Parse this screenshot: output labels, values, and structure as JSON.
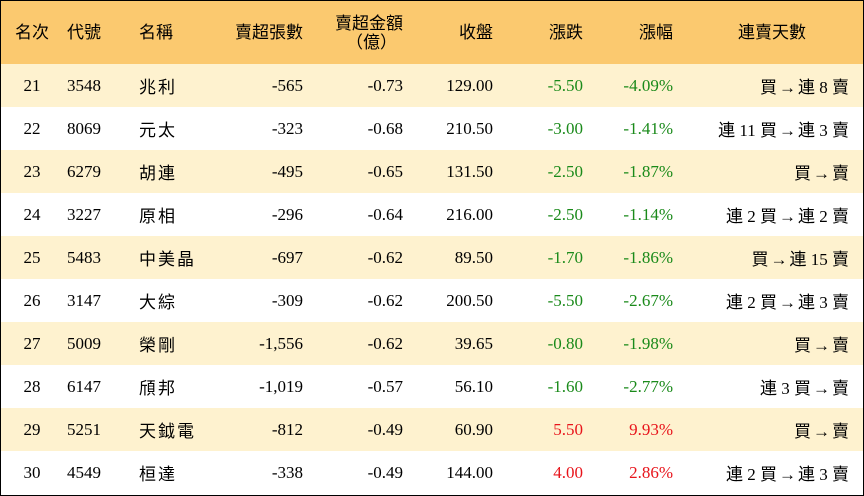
{
  "colors": {
    "header_bg": "#FBC96F",
    "stripe_bg": "#FEF2CF",
    "down": "#1A8A1A",
    "up": "#E8141B"
  },
  "header": {
    "rank": "名次",
    "code": "代號",
    "name": "名稱",
    "net_sell_lots": "賣超張數",
    "net_sell_amount_line1": "賣超金額",
    "net_sell_amount_line2": "（億）",
    "close": "收盤",
    "change": "漲跌",
    "change_pct": "漲幅",
    "streak": "連賣天數"
  },
  "rows": [
    {
      "rank": "21",
      "code": "3548",
      "name": "兆利",
      "lots": "-565",
      "amount": "-0.73",
      "close": "129.00",
      "change": "-5.50",
      "pct": "-4.09%",
      "dir": "down",
      "streak_from": "買",
      "streak_to": "連 8 賣"
    },
    {
      "rank": "22",
      "code": "8069",
      "name": "元太",
      "lots": "-323",
      "amount": "-0.68",
      "close": "210.50",
      "change": "-3.00",
      "pct": "-1.41%",
      "dir": "down",
      "streak_from": "連 11 買",
      "streak_to": "連 3 賣"
    },
    {
      "rank": "23",
      "code": "6279",
      "name": "胡連",
      "lots": "-495",
      "amount": "-0.65",
      "close": "131.50",
      "change": "-2.50",
      "pct": "-1.87%",
      "dir": "down",
      "streak_from": "買",
      "streak_to": "賣"
    },
    {
      "rank": "24",
      "code": "3227",
      "name": "原相",
      "lots": "-296",
      "amount": "-0.64",
      "close": "216.00",
      "change": "-2.50",
      "pct": "-1.14%",
      "dir": "down",
      "streak_from": "連 2 買",
      "streak_to": "連 2 賣"
    },
    {
      "rank": "25",
      "code": "5483",
      "name": "中美晶",
      "lots": "-697",
      "amount": "-0.62",
      "close": "89.50",
      "change": "-1.70",
      "pct": "-1.86%",
      "dir": "down",
      "streak_from": "買",
      "streak_to": "連 15 賣"
    },
    {
      "rank": "26",
      "code": "3147",
      "name": "大綜",
      "lots": "-309",
      "amount": "-0.62",
      "close": "200.50",
      "change": "-5.50",
      "pct": "-2.67%",
      "dir": "down",
      "streak_from": "連 2 買",
      "streak_to": "連 3 賣"
    },
    {
      "rank": "27",
      "code": "5009",
      "name": "榮剛",
      "lots": "-1,556",
      "amount": "-0.62",
      "close": "39.65",
      "change": "-0.80",
      "pct": "-1.98%",
      "dir": "down",
      "streak_from": "買",
      "streak_to": "賣"
    },
    {
      "rank": "28",
      "code": "6147",
      "name": "頎邦",
      "lots": "-1,019",
      "amount": "-0.57",
      "close": "56.10",
      "change": "-1.60",
      "pct": "-2.77%",
      "dir": "down",
      "streak_from": "連 3 買",
      "streak_to": "賣"
    },
    {
      "rank": "29",
      "code": "5251",
      "name": "天鉞電",
      "lots": "-812",
      "amount": "-0.49",
      "close": "60.90",
      "change": "5.50",
      "pct": "9.93%",
      "dir": "up",
      "streak_from": "買",
      "streak_to": "賣"
    },
    {
      "rank": "30",
      "code": "4549",
      "name": "桓達",
      "lots": "-338",
      "amount": "-0.49",
      "close": "144.00",
      "change": "4.00",
      "pct": "2.86%",
      "dir": "up",
      "streak_from": "連 2 買",
      "streak_to": "連 3 賣"
    }
  ],
  "arrow_glyph": "→"
}
